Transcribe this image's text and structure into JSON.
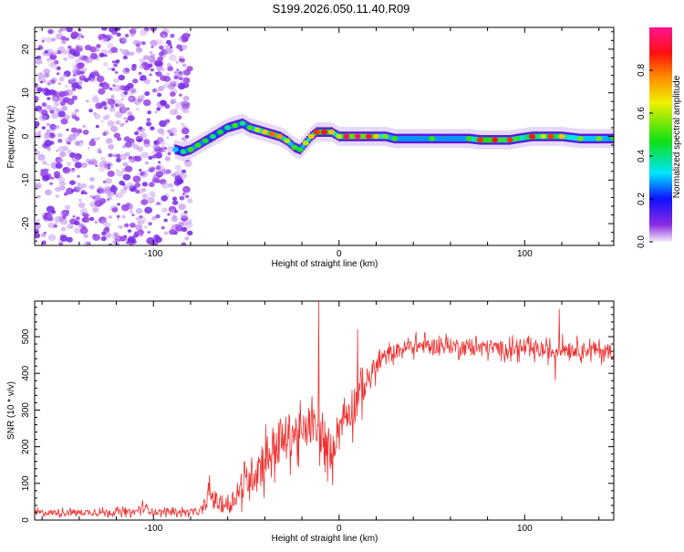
{
  "title": "S199.2026.050.11.40.R09",
  "chart_data": [
    {
      "type": "heatmap",
      "xlabel": "Height of straight line (km)",
      "ylabel": "Frequency (Hz)",
      "xlim": [
        -164,
        148
      ],
      "ylim": [
        -25,
        25
      ],
      "xticks": [
        -100,
        0,
        100
      ],
      "yticks": [
        -20,
        -10,
        0,
        10,
        20
      ],
      "colorbar": {
        "label": "Normalized spectral amplitude",
        "range": [
          0,
          1
        ],
        "ticks": [
          "0.0",
          "0.2",
          "0.4",
          "0.6",
          "0.8"
        ],
        "colors": [
          "#f3ecfb",
          "#8a2be2",
          "#1010ff",
          "#00e5ff",
          "#10e010",
          "#f0f000",
          "#ff8000",
          "#ff1010",
          "#ff1493"
        ]
      },
      "noise_region_x": [
        -164,
        -80
      ],
      "ridge": {
        "x": [
          -88,
          -84,
          -80,
          -76,
          -72,
          -68,
          -64,
          -60,
          -56,
          -52,
          -48,
          -44,
          -40,
          -36,
          -32,
          -28,
          -24,
          -21,
          -18,
          -15,
          -12,
          -8,
          -4,
          0,
          4,
          10,
          16,
          20,
          25,
          30,
          50,
          70,
          76,
          84,
          88,
          92,
          96,
          104,
          110,
          114,
          120,
          130,
          140,
          148
        ],
        "freq": [
          -3,
          -3.5,
          -3,
          -2,
          -1,
          0,
          1,
          2,
          2.5,
          3,
          2,
          1.5,
          1,
          0.5,
          0,
          -1,
          -2.5,
          -3,
          -1.5,
          0,
          1,
          1,
          1,
          0,
          0,
          0,
          0,
          0,
          0,
          -0.5,
          -0.5,
          -0.5,
          -0.8,
          -0.8,
          -0.8,
          -0.8,
          -0.5,
          0,
          0,
          0,
          0,
          -0.5,
          -0.5,
          -0.5
        ],
        "amp": [
          0.3,
          0.4,
          0.5,
          0.5,
          0.45,
          0.4,
          0.45,
          0.4,
          0.5,
          0.4,
          0.5,
          0.6,
          0.7,
          0.8,
          0.75,
          0.6,
          0.5,
          0.45,
          0.6,
          0.7,
          0.85,
          0.9,
          0.7,
          0.6,
          0.95,
          0.98,
          0.95,
          0.7,
          0.55,
          0.5,
          0.5,
          0.5,
          0.85,
          0.9,
          0.5,
          0.85,
          0.5,
          0.9,
          0.6,
          0.85,
          0.7,
          0.55,
          0.55,
          0.5
        ]
      }
    },
    {
      "type": "line",
      "xlabel": "Height of straight line (km)",
      "ylabel": "SNR (10 * v/v)",
      "xlim": [
        -164,
        148
      ],
      "ylim": [
        0,
        597
      ],
      "xticks": [
        -100,
        0,
        100
      ],
      "yticks": [
        0,
        100,
        200,
        300,
        400,
        500
      ],
      "color": "#f03030",
      "envelope": {
        "x": [
          -164,
          -110,
          -105,
          -100,
          -75,
          -72,
          -70,
          -65,
          -60,
          -55,
          -50,
          -45,
          -40,
          -35,
          -30,
          -25,
          -20,
          -15,
          -10,
          -5,
          0,
          5,
          10,
          15,
          20,
          25,
          30,
          40,
          60,
          80,
          100,
          115,
          120,
          130,
          148
        ],
        "y": [
          20,
          22,
          35,
          22,
          22,
          40,
          75,
          45,
          40,
          70,
          100,
          140,
          170,
          200,
          215,
          240,
          230,
          260,
          230,
          180,
          260,
          300,
          330,
          380,
          420,
          445,
          460,
          475,
          475,
          470,
          465,
          460,
          470,
          465,
          460
        ],
        "spread": [
          12,
          12,
          20,
          12,
          12,
          20,
          40,
          35,
          30,
          45,
          60,
          80,
          90,
          90,
          90,
          90,
          80,
          70,
          70,
          70,
          60,
          80,
          80,
          50,
          40,
          35,
          30,
          30,
          30,
          30,
          30,
          30,
          30,
          30,
          30
        ]
      },
      "spikes": [
        [
          -11,
          597
        ],
        [
          -7.5,
          130
        ],
        [
          -3.5,
          95
        ],
        [
          118.5,
          575
        ],
        [
          116.5,
          380
        ],
        [
          10,
          520
        ]
      ]
    }
  ]
}
